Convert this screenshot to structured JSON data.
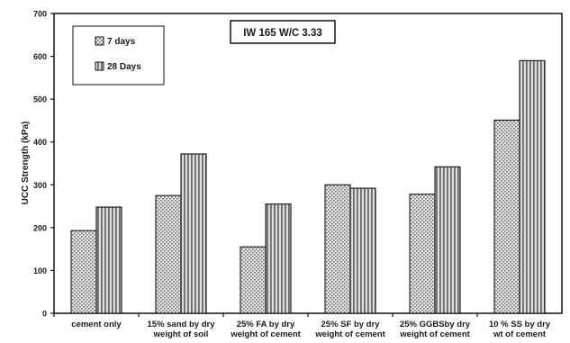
{
  "chart_data": {
    "type": "bar",
    "annotation": "IW 165 W/C 3.33",
    "ylabel": "UCC Strength (kPa)",
    "xlabel": "",
    "ylim": [
      0,
      700
    ],
    "yticks": [
      0,
      100,
      200,
      300,
      400,
      500,
      600,
      700
    ],
    "categories": [
      [
        "cement only"
      ],
      [
        "15% sand by dry",
        "weight of soil"
      ],
      [
        "25% FA by dry",
        "weight of cement"
      ],
      [
        "25% SF by dry",
        "weight of cement"
      ],
      [
        "25% GGBSby dry",
        "weight of cement"
      ],
      [
        "10 %  SS by dry",
        "wt of cement"
      ]
    ],
    "series": [
      {
        "name": "7 days",
        "values": [
          193,
          275,
          155,
          300,
          278,
          451
        ],
        "pattern": "dotted"
      },
      {
        "name": "28 Days",
        "values": [
          248,
          372,
          255,
          292,
          342,
          590
        ],
        "pattern": "striped"
      }
    ],
    "legend_position": "top-left",
    "grid": false
  }
}
